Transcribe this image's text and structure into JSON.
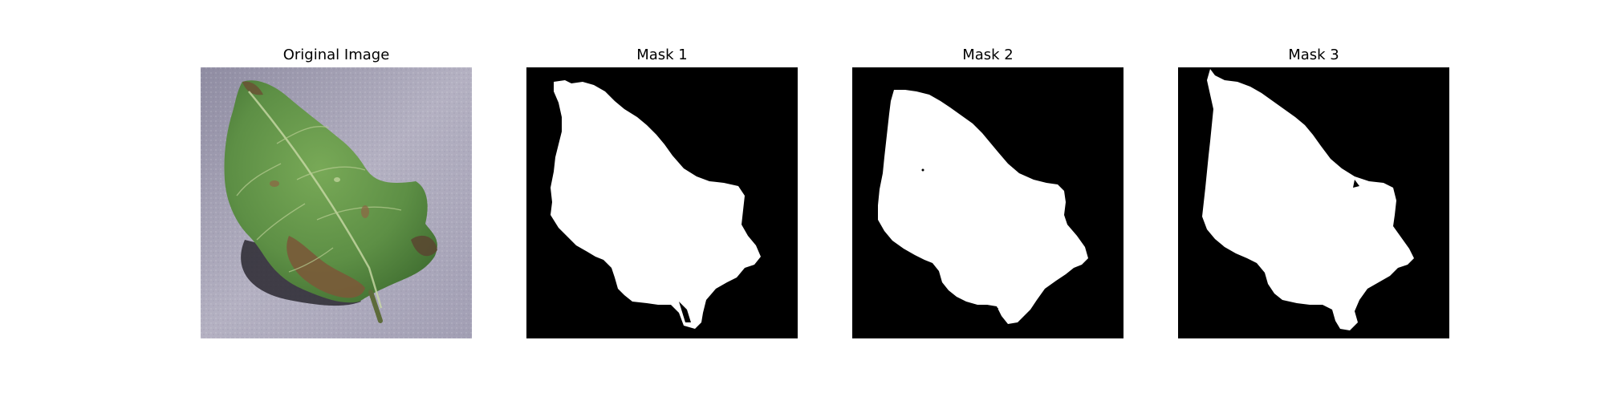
{
  "panels": [
    {
      "title": "Original Image",
      "kind": "photo"
    },
    {
      "title": "Mask 1",
      "kind": "mask"
    },
    {
      "title": "Mask 2",
      "kind": "mask"
    },
    {
      "title": "Mask 3",
      "kind": "mask"
    }
  ],
  "colors": {
    "background": "#ffffff",
    "mask_background": "#000000",
    "mask_foreground": "#ffffff",
    "leaf_green": "#5d8f45",
    "leaf_dark_green": "#3f6d30",
    "leaf_brown": "#7a5a38",
    "surface_gray": "#a9a6b8",
    "shadow": "#2a2830"
  }
}
